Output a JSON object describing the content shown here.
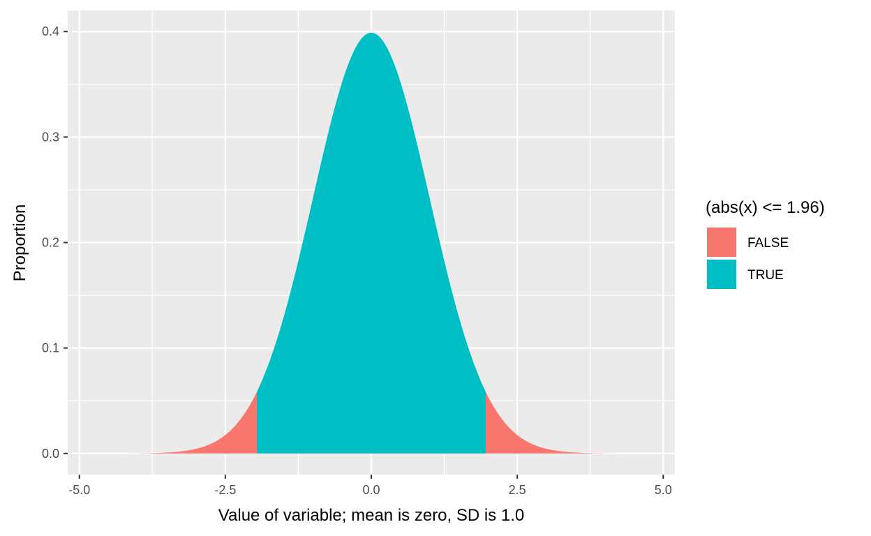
{
  "chart_data": {
    "type": "area",
    "xlabel": "Value of variable; mean is zero, SD is 1.0",
    "ylabel": "Proportion",
    "xlim": [
      -5.2,
      5.2
    ],
    "ylim": [
      -0.02,
      0.42
    ],
    "x_ticks": [
      -5.0,
      -2.5,
      0.0,
      2.5,
      5.0
    ],
    "x_tick_labels": [
      "-5.0",
      "-2.5",
      "0.0",
      "2.5",
      "5.0"
    ],
    "y_ticks": [
      0.0,
      0.1,
      0.2,
      0.3,
      0.4
    ],
    "y_tick_labels": [
      "0.0",
      "0.1",
      "0.2",
      "0.3",
      "0.4"
    ],
    "x_minor_ticks": [
      -3.75,
      -1.25,
      1.25,
      3.75
    ],
    "y_minor_ticks": [
      0.05,
      0.15,
      0.25,
      0.35
    ],
    "grid": true,
    "distribution": "normal",
    "mean": 0,
    "sd": 1.0,
    "x_range": [
      -4.2,
      4.2
    ],
    "threshold": 1.96,
    "legend": {
      "title": "(abs(x) <= 1.96)",
      "placement": "right",
      "entries": [
        {
          "label": "FALSE",
          "color": "#F8766D"
        },
        {
          "label": "TRUE",
          "color": "#00BFC4"
        }
      ]
    },
    "series": [
      {
        "name": "FALSE",
        "x_range": [
          -4.2,
          -1.96
        ],
        "color": "#F8766D"
      },
      {
        "name": "TRUE",
        "x_range": [
          -1.96,
          1.96
        ],
        "color": "#00BFC4"
      },
      {
        "name": "FALSE",
        "x_range": [
          1.96,
          4.2
        ],
        "color": "#F8766D"
      }
    ]
  },
  "colors": {
    "panel_background": "#EBEBEB",
    "grid_line": "#FFFFFF",
    "false_fill": "#F8766D",
    "true_fill": "#00BFC4"
  }
}
